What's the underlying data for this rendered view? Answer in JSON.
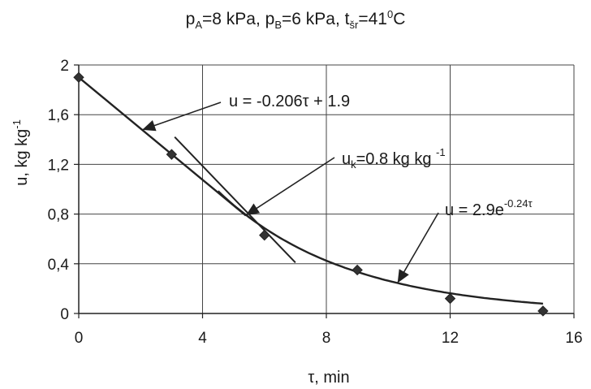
{
  "title": {
    "pa_sym": "p",
    "pa_sub": "A",
    "pa_val": "=8 kPa, ",
    "pb_sym": "p",
    "pb_sub": "B",
    "pb_val": "=6 kPa, ",
    "t_sym": "t",
    "t_sub": "šr",
    "t_val": "=41",
    "t_sup": "0",
    "t_unit": "C"
  },
  "chart_data": {
    "type": "scatter",
    "xlabel": "τ, min",
    "ylabel": "u, kg kg",
    "ylabel_sup": "-1",
    "xlim": [
      0,
      16
    ],
    "ylim": [
      0,
      2
    ],
    "x_ticks": [
      0,
      4,
      8,
      12,
      16
    ],
    "x_tick_labels": [
      "0",
      "4",
      "8",
      "12",
      "16"
    ],
    "y_ticks": [
      0,
      0.4,
      0.8,
      1.2,
      1.6,
      2
    ],
    "y_tick_labels": [
      "0",
      "0,4",
      "0,8",
      "1,2",
      "1,6",
      "2"
    ],
    "grid": true,
    "series": [
      {
        "marker": "diamond",
        "x": [
          0,
          3,
          6,
          9,
          12,
          15
        ],
        "y": [
          1.9,
          1.28,
          0.63,
          0.35,
          0.12,
          0.02
        ]
      }
    ],
    "annotations": {
      "linear": {
        "text": "u = -0.206τ + 1.9"
      },
      "critical": {
        "text": "u",
        "sub": "k",
        "text2": "=0.8 kg kg ",
        "sup": "-1"
      },
      "exponential": {
        "text": "u = 2.9e",
        "sup": "-0.24τ"
      }
    }
  }
}
